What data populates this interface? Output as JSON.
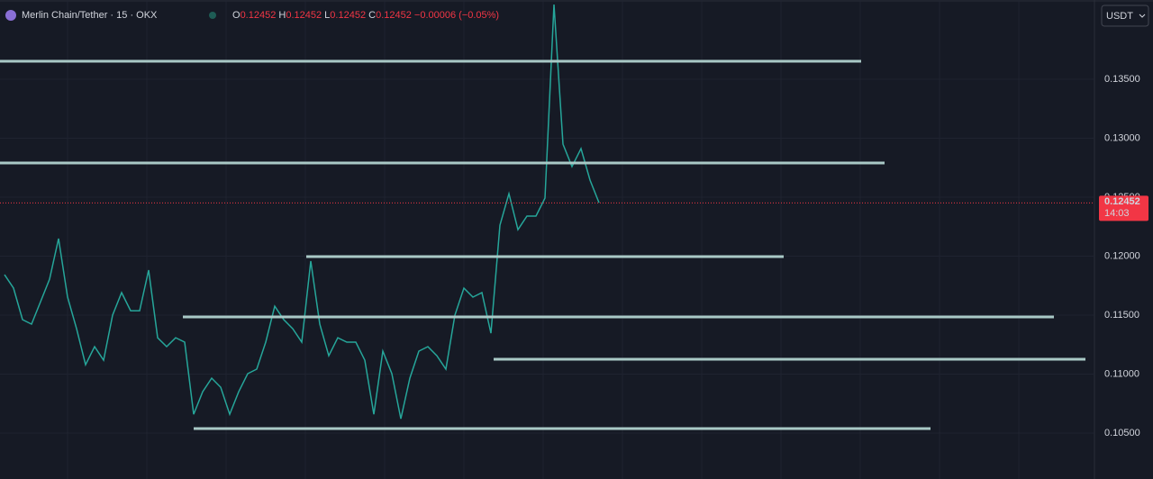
{
  "chart_data": {
    "type": "line",
    "title": "Merlin Chain/Tether · 15 · OKX",
    "ohlc": {
      "o_label": "O",
      "o": "0.12452",
      "h_label": "H",
      "h": "0.12452",
      "l_label": "L",
      "l": "0.12452",
      "c_label": "C",
      "c": "0.12452",
      "change": "−0.00006 (−0.05%)"
    },
    "currency": "USDT",
    "last_price": {
      "value": 0.12452,
      "label": "0.12452",
      "countdown": "14:03",
      "color": "#f23645"
    },
    "series": [
      {
        "color": "#26a69a",
        "values": [
          0.11843,
          0.11729,
          0.11462,
          0.11424,
          0.11614,
          0.11805,
          0.12149,
          0.11653,
          0.11385,
          0.1108,
          0.11233,
          0.11118,
          0.115,
          0.11691,
          0.11538,
          0.11538,
          0.11882,
          0.11309,
          0.11233,
          0.11309,
          0.11271,
          0.1066,
          0.10851,
          0.10966,
          0.10889,
          0.1066,
          0.10851,
          0.11004,
          0.11042,
          0.11271,
          0.11576,
          0.11462,
          0.11385,
          0.11271,
          0.11958,
          0.11424,
          0.11156,
          0.11309,
          0.11271,
          0.11271,
          0.11118,
          0.1066,
          0.11195,
          0.11004,
          0.10622,
          0.10966,
          0.11195,
          0.11233,
          0.11156,
          0.11042,
          0.115,
          0.11729,
          0.11653,
          0.11691,
          0.11347,
          0.12263,
          0.1253,
          0.12225,
          0.1234,
          0.1234,
          0.12492,
          0.14134,
          0.1295,
          0.1276,
          0.12912,
          0.12645,
          0.12454
        ]
      }
    ],
    "levels": {
      "color": "#a9c9c6",
      "values": [
        0.13653,
        0.1279,
        0.11996,
        0.11485,
        0.11126,
        0.10538
      ]
    },
    "ylim": [
      0.10111,
      0.14172
    ],
    "yticks": [
      {
        "value": 0.105,
        "label": "0.10500"
      },
      {
        "value": 0.11,
        "label": "0.11000"
      },
      {
        "value": 0.115,
        "label": "0.11500"
      },
      {
        "value": 0.12,
        "label": "0.12000"
      },
      {
        "value": 0.125,
        "label": "0.12500"
      },
      {
        "value": 0.13,
        "label": "0.13000"
      },
      {
        "value": 0.135,
        "label": "0.13500"
      }
    ],
    "grid": true
  }
}
